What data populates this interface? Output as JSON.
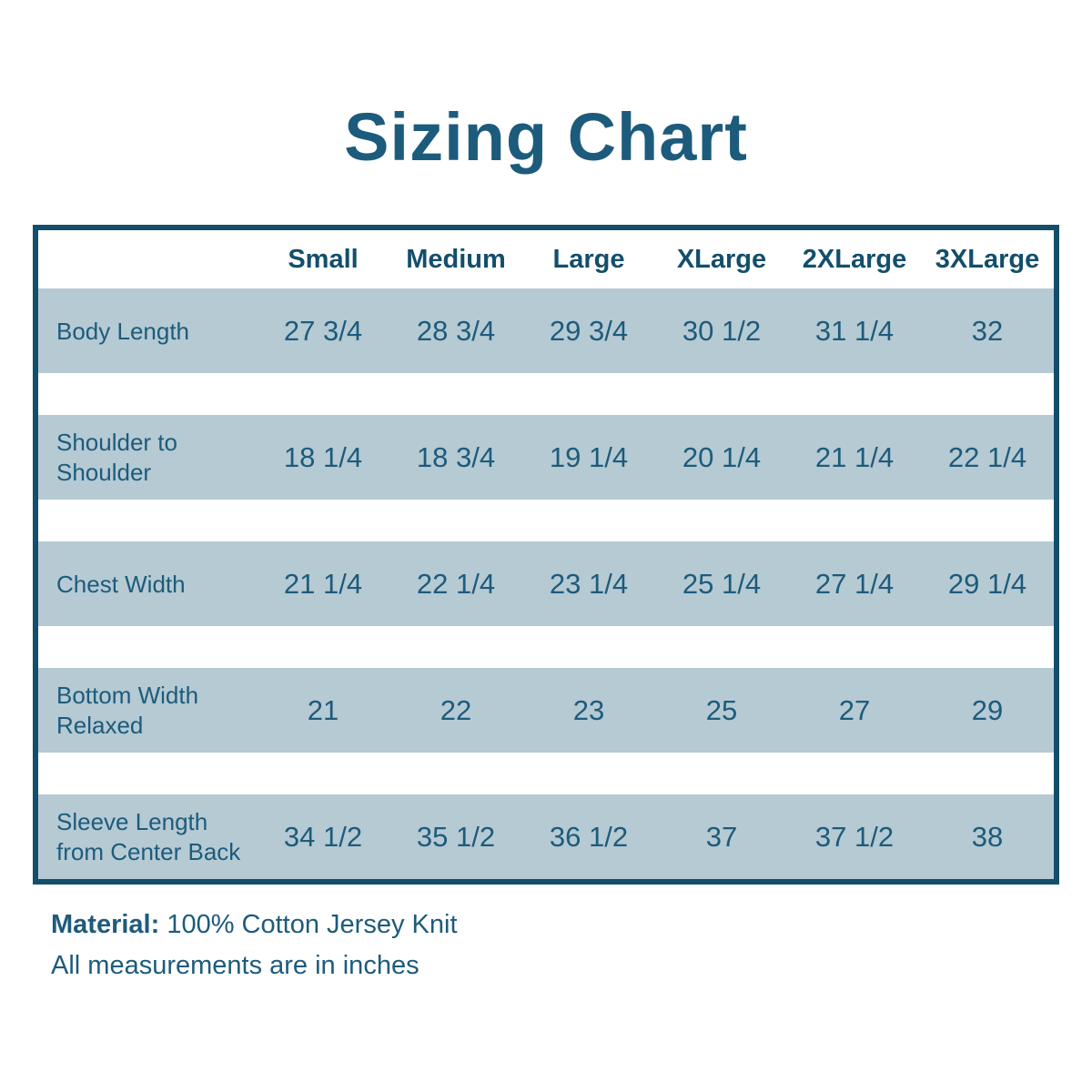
{
  "title": "Sizing Chart",
  "colors": {
    "text_teal": "#1d5b7c",
    "accent_dark_teal": "#134f6b",
    "row_band_blue": "#b5cad3",
    "background": "#ffffff"
  },
  "table": {
    "columns": [
      "Small",
      "Medium",
      "Large",
      "XLarge",
      "2XLarge",
      "3XLarge"
    ],
    "rows": [
      {
        "label": "Body Length",
        "values": [
          "27 3/4",
          "28 3/4",
          "29 3/4",
          "30 1/2",
          "31 1/4",
          "32"
        ]
      },
      {
        "label": "Shoulder to Shoulder",
        "values": [
          "18 1/4",
          "18 3/4",
          "19 1/4",
          "20 1/4",
          "21 1/4",
          "22 1/4"
        ]
      },
      {
        "label": "Chest Width",
        "values": [
          "21 1/4",
          "22 1/4",
          "23 1/4",
          "25 1/4",
          "27 1/4",
          "29 1/4"
        ]
      },
      {
        "label": "Bottom Width Relaxed",
        "values": [
          "21",
          "22",
          "23",
          "25",
          "27",
          "29"
        ]
      },
      {
        "label": "Sleeve Length from Center Back",
        "values": [
          "34 1/2",
          "35 1/2",
          "36 1/2",
          "37",
          "37 1/2",
          "38"
        ]
      }
    ]
  },
  "footer": {
    "material_label": "Material:",
    "material_value": "100% Cotton Jersey Knit",
    "note": "All measurements are in inches"
  }
}
